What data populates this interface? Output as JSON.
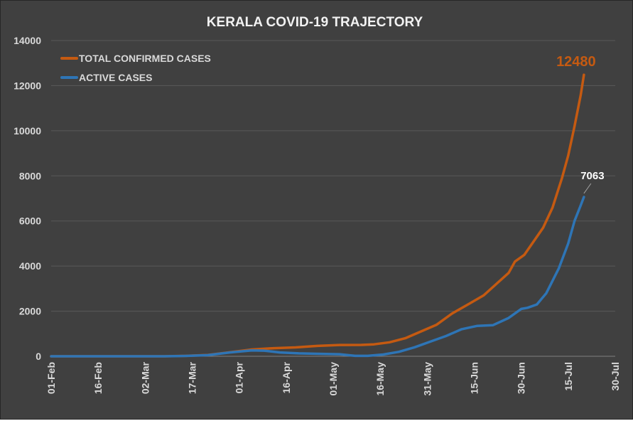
{
  "chart_data": {
    "type": "line",
    "title": "KERALA COVID-19 TRAJECTORY",
    "xlabel": "",
    "ylabel": "",
    "ylim": [
      0,
      14000
    ],
    "yticks": [
      0,
      2000,
      4000,
      6000,
      8000,
      10000,
      12000,
      14000
    ],
    "xlim": [
      "2020-02-01",
      "2020-07-30"
    ],
    "xtick_labels": [
      "01-Feb",
      "16-Feb",
      "02-Mar",
      "17-Mar",
      "01-Apr",
      "16-Apr",
      "01-May",
      "16-May",
      "31-May",
      "15-Jun",
      "30-Jun",
      "15-Jul",
      "30-Jul"
    ],
    "xtick_dates": [
      "2020-02-01",
      "2020-02-16",
      "2020-03-02",
      "2020-03-17",
      "2020-04-01",
      "2020-04-16",
      "2020-05-01",
      "2020-05-16",
      "2020-05-31",
      "2020-06-15",
      "2020-06-30",
      "2020-07-15",
      "2020-07-30"
    ],
    "grid": true,
    "legend_position": "top-left",
    "series": [
      {
        "name": "TOTAL CONFIRMED CASES",
        "color": "#c55a11",
        "points": [
          [
            "2020-02-01",
            0
          ],
          [
            "2020-03-08",
            0
          ],
          [
            "2020-03-15",
            20
          ],
          [
            "2020-03-22",
            60
          ],
          [
            "2020-03-29",
            180
          ],
          [
            "2020-04-05",
            300
          ],
          [
            "2020-04-12",
            360
          ],
          [
            "2020-04-19",
            395
          ],
          [
            "2020-04-26",
            460
          ],
          [
            "2020-05-03",
            500
          ],
          [
            "2020-05-10",
            505
          ],
          [
            "2020-05-14",
            530
          ],
          [
            "2020-05-19",
            620
          ],
          [
            "2020-05-24",
            800
          ],
          [
            "2020-05-29",
            1100
          ],
          [
            "2020-06-03",
            1400
          ],
          [
            "2020-06-08",
            1900
          ],
          [
            "2020-06-13",
            2300
          ],
          [
            "2020-06-18",
            2700
          ],
          [
            "2020-06-22",
            3200
          ],
          [
            "2020-06-26",
            3700
          ],
          [
            "2020-06-28",
            4200
          ],
          [
            "2020-07-01",
            4500
          ],
          [
            "2020-07-04",
            5100
          ],
          [
            "2020-07-07",
            5700
          ],
          [
            "2020-07-10",
            6600
          ],
          [
            "2020-07-13",
            7900
          ],
          [
            "2020-07-15",
            8900
          ],
          [
            "2020-07-17",
            10200
          ],
          [
            "2020-07-19",
            11600
          ],
          [
            "2020-07-20",
            12480
          ]
        ]
      },
      {
        "name": "ACTIVE CASES",
        "color": "#2e75b6",
        "points": [
          [
            "2020-02-01",
            0
          ],
          [
            "2020-03-08",
            0
          ],
          [
            "2020-03-15",
            15
          ],
          [
            "2020-03-22",
            50
          ],
          [
            "2020-03-29",
            170
          ],
          [
            "2020-04-05",
            260
          ],
          [
            "2020-04-09",
            250
          ],
          [
            "2020-04-14",
            170
          ],
          [
            "2020-04-20",
            130
          ],
          [
            "2020-04-26",
            110
          ],
          [
            "2020-05-03",
            90
          ],
          [
            "2020-05-08",
            20
          ],
          [
            "2020-05-12",
            20
          ],
          [
            "2020-05-17",
            80
          ],
          [
            "2020-05-22",
            200
          ],
          [
            "2020-05-27",
            400
          ],
          [
            "2020-06-01",
            650
          ],
          [
            "2020-06-06",
            900
          ],
          [
            "2020-06-11",
            1200
          ],
          [
            "2020-06-16",
            1350
          ],
          [
            "2020-06-21",
            1380
          ],
          [
            "2020-06-26",
            1700
          ],
          [
            "2020-06-30",
            2100
          ],
          [
            "2020-07-02",
            2150
          ],
          [
            "2020-07-05",
            2300
          ],
          [
            "2020-07-08",
            2800
          ],
          [
            "2020-07-12",
            3900
          ],
          [
            "2020-07-15",
            5000
          ],
          [
            "2020-07-17",
            6000
          ],
          [
            "2020-07-19",
            6700
          ],
          [
            "2020-07-20",
            7063
          ]
        ]
      }
    ],
    "annotations": [
      {
        "text": "12480",
        "series": "TOTAL CONFIRMED CASES"
      },
      {
        "text": "7063",
        "series": "ACTIVE CASES"
      }
    ]
  }
}
